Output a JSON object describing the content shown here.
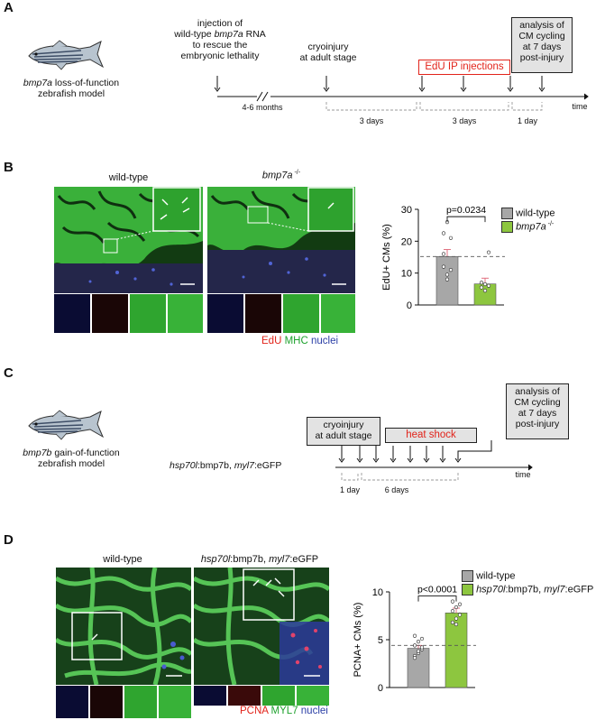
{
  "panels": {
    "A": {
      "letter": "A",
      "model_label": {
        "line1_gene": "bmp7a",
        "line1_rest": " loss-of-function",
        "line2": "zebrafish model"
      },
      "injection_text": {
        "line1": "injection of",
        "line2_pre": "wild-type ",
        "line2_gene": "bmp7a",
        "line2_post": " RNA",
        "line3": "to rescue the",
        "line4": "embryonic lethality"
      },
      "cryo_text": {
        "line1": "cryoinjury",
        "line2": "at adult stage"
      },
      "edu_box": "EdU IP injections",
      "analysis_box": {
        "line1": "analysis of",
        "line2": "CM cycling",
        "line3": "at 7 days",
        "line4": "post-injury"
      },
      "break_label": "4-6 months",
      "intervals": [
        "3 days",
        "3 days",
        "1 day"
      ],
      "time_label": "time"
    },
    "B": {
      "letter": "B",
      "wt_title": "wild-type",
      "mut_title_gene": "bmp7a",
      "mut_title_sup": " -/-",
      "stain_labels": {
        "a": "EdU",
        "b": "MHC",
        "c": "nuclei"
      },
      "stain_colors": {
        "a": "#e2231a",
        "b": "#1fa22e",
        "c": "#2b3fa6"
      }
    },
    "C": {
      "letter": "C",
      "model_label": {
        "line1_gene": "bmp7b",
        "line1_rest": " gain-of-function",
        "line2": "zebrafish model"
      },
      "genotype_label": {
        "gene1": "hsp70l",
        "rest1": ":bmp7b, ",
        "gene2": "myl7",
        "rest2": ":eGFP"
      },
      "cryo_box": {
        "line1": "cryoinjury",
        "line2": "at adult stage"
      },
      "heat_box": "heat shock",
      "analysis_box": {
        "line1": "analysis of",
        "line2": "CM cycling",
        "line3": "at 7 days",
        "line4": "post-injury"
      },
      "intervals": [
        "1 day",
        "6 days"
      ],
      "time_label": "time"
    },
    "D": {
      "letter": "D",
      "wt_title": "wild-type",
      "tg_title": {
        "gene1": "hsp70l",
        "rest1": ":bmp7b, ",
        "gene2": "myl7",
        "rest2": ":eGFP"
      },
      "stain_labels": {
        "a": "PCNA",
        "b": "MYL7",
        "c": "nuclei"
      },
      "stain_colors": {
        "a": "#e2231a",
        "b": "#1fa22e",
        "c": "#2b3fa6"
      }
    }
  },
  "chart_data": [
    {
      "type": "bar",
      "panel": "B",
      "ylabel": "EdU+ CMs (%)",
      "ylim": [
        0,
        30
      ],
      "yticks": [
        0,
        10,
        20,
        30
      ],
      "categories": [
        "wild-type",
        "bmp7a -/-"
      ],
      "legend": [
        {
          "name": "wild-type",
          "color": "#a7a7a7"
        },
        {
          "name_gene": "bmp7a",
          "name_sup": " -/-",
          "color": "#8dc63f"
        }
      ],
      "values": [
        15.2,
        6.6
      ],
      "errors": [
        2.2,
        1.8
      ],
      "points": [
        [
          12,
          9.5,
          11,
          16,
          8,
          21,
          22.5,
          26
        ],
        [
          5.5,
          4.5,
          6,
          7,
          6.5,
          16.5
        ]
      ],
      "reference_line": 15.2,
      "annotation": "p=0.0234"
    },
    {
      "type": "bar",
      "panel": "D",
      "ylabel": "PCNA+ CMs (%)",
      "ylim": [
        0,
        10
      ],
      "yticks": [
        0,
        5,
        10
      ],
      "categories": [
        "wild-type",
        "hsp70l:bmp7b, myl7:eGFP"
      ],
      "legend": [
        {
          "name": "wild-type",
          "color": "#a7a7a7"
        },
        {
          "name_gene1": "hsp70l",
          "name_rest1": ":bmp7b, ",
          "name_gene2": "myl7",
          "name_rest2": ":eGFP",
          "color": "#8dc63f"
        }
      ],
      "values": [
        4.1,
        7.8
      ],
      "errors": [
        0.3,
        0.5
      ],
      "points": [
        [
          3.3,
          3.6,
          4.0,
          4.4,
          4.8,
          5.1,
          5.4,
          3.8,
          4.2,
          3.1
        ],
        [
          6.8,
          7.2,
          7.6,
          8.0,
          8.4,
          8.7,
          9.0,
          6.6
        ]
      ],
      "reference_line": 4.4,
      "annotation": "p<0.0001"
    }
  ]
}
